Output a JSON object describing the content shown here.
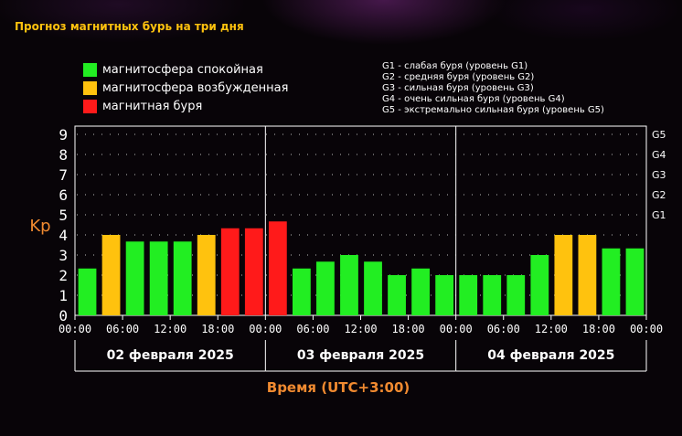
{
  "title": "Прогноз магнитных бурь на три дня",
  "legend": [
    {
      "label": "магнитосфера спокойная",
      "color": "#22ee22"
    },
    {
      "label": "магнитосфера возбужденная",
      "color": "#ffc20e"
    },
    {
      "label": "магнитная буря",
      "color": "#ff1a1a"
    }
  ],
  "storm_levels": [
    "G1 - слабая буря (уровень G1)",
    "G2 - средняя буря (уровень G2)",
    "G3 - сильная буря (уровень G3)",
    "G4 - очень сильная буря (уровень G4)",
    "G5 - экстремально сильная буря (уровень G5)"
  ],
  "chart_data": {
    "type": "bar",
    "ylabel": "Kp",
    "xlabel": "Время (UTC+3:00)",
    "ylim": [
      0,
      9
    ],
    "yticks": [
      "0",
      "1",
      "2",
      "3",
      "4",
      "5",
      "6",
      "7",
      "8",
      "9"
    ],
    "g_levels": [
      {
        "label": "G1",
        "kp": 5
      },
      {
        "label": "G2",
        "kp": 6
      },
      {
        "label": "G3",
        "kp": 7
      },
      {
        "label": "G4",
        "kp": 8
      },
      {
        "label": "G5",
        "kp": 9
      }
    ],
    "x_tick_labels": [
      "00:00",
      "06:00",
      "12:00",
      "18:00",
      "00:00",
      "06:00",
      "12:00",
      "18:00",
      "00:00",
      "06:00",
      "12:00",
      "18:00",
      "00:00"
    ],
    "days": [
      "02 февраля 2025",
      "03 февраля 2025",
      "04 февраля 2025"
    ],
    "values": [
      2.33,
      4.0,
      3.67,
      3.67,
      3.67,
      4.0,
      4.33,
      4.33,
      4.67,
      2.33,
      2.67,
      3.0,
      2.67,
      2.0,
      2.33,
      2.0,
      2.0,
      2.0,
      2.0,
      3.0,
      4.0,
      4.0,
      3.33,
      3.33
    ],
    "grid": true
  }
}
